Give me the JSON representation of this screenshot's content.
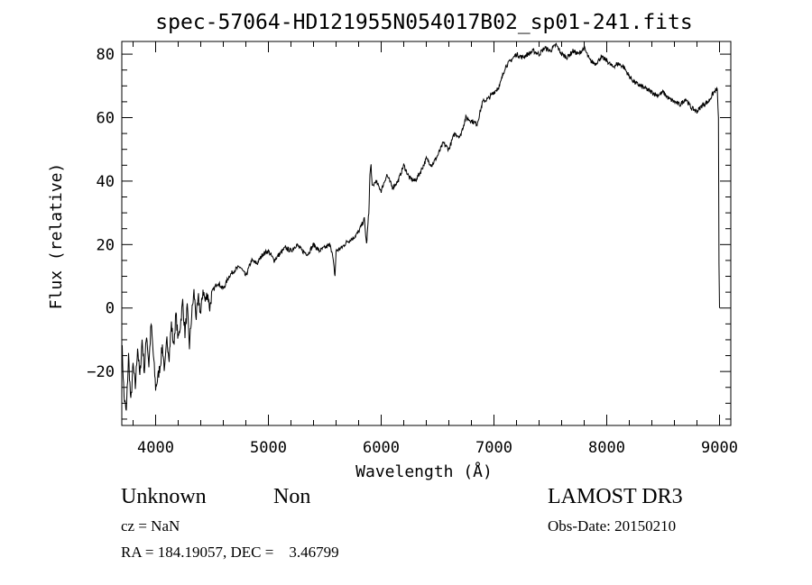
{
  "chart_data": {
    "type": "line",
    "title": "spec-57064-HD121955N054017B02_sp01-241.fits",
    "xlabel": "Wavelength (Å)",
    "ylabel": "Flux (relative)",
    "xlim": [
      3700,
      9100
    ],
    "ylim": [
      -37,
      84
    ],
    "x_ticks": [
      4000,
      5000,
      6000,
      7000,
      8000,
      9000
    ],
    "y_ticks": [
      -20,
      0,
      20,
      40,
      60,
      80
    ],
    "grid": false,
    "series": [
      {
        "x": [
          3700,
          3720,
          3740,
          3760,
          3780,
          3800,
          3820,
          3840,
          3860,
          3880,
          3900,
          3920,
          3940,
          3960,
          3980,
          4000,
          4020,
          4040,
          4060,
          4080,
          4100,
          4120,
          4140,
          4160,
          4180,
          4200,
          4220,
          4240,
          4260,
          4280,
          4300,
          4320,
          4340,
          4360,
          4380,
          4400,
          4420,
          4440,
          4460,
          4480,
          4500,
          4550,
          4600,
          4650,
          4700,
          4750,
          4800,
          4850,
          4900,
          4950,
          5000,
          5050,
          5100,
          5150,
          5200,
          5250,
          5300,
          5350,
          5400,
          5450,
          5500,
          5550,
          5570,
          5590,
          5600,
          5650,
          5700,
          5750,
          5800,
          5850,
          5870,
          5880,
          5890,
          5900,
          5910,
          5920,
          5950,
          6000,
          6050,
          6100,
          6150,
          6200,
          6250,
          6300,
          6350,
          6400,
          6450,
          6500,
          6550,
          6600,
          6650,
          6700,
          6750,
          6800,
          6850,
          6900,
          6950,
          7000,
          7050,
          7100,
          7150,
          7200,
          7250,
          7300,
          7350,
          7400,
          7450,
          7500,
          7550,
          7600,
          7650,
          7700,
          7750,
          7800,
          7850,
          7900,
          7950,
          8000,
          8050,
          8100,
          8150,
          8200,
          8250,
          8300,
          8350,
          8400,
          8450,
          8500,
          8550,
          8600,
          8650,
          8700,
          8750,
          8800,
          8850,
          8900,
          8950,
          8980,
          8990,
          8995,
          9000
        ],
        "y": [
          -10,
          -28,
          -33,
          -15,
          -30,
          -18,
          -25,
          -12,
          -22,
          -10,
          -20,
          -8,
          -18,
          -5,
          -15,
          -25,
          -22,
          -18,
          -12,
          -20,
          -10,
          -15,
          -5,
          -12,
          -2,
          -10,
          -5,
          2,
          -8,
          0,
          -12,
          -2,
          5,
          -3,
          3,
          -2,
          6,
          2,
          5,
          0,
          5,
          8,
          6,
          10,
          12,
          13,
          10,
          15,
          14,
          17,
          18,
          15,
          17,
          19,
          18,
          20,
          18,
          17,
          20,
          18,
          19,
          20,
          16,
          10,
          18,
          19,
          21,
          22,
          24,
          28,
          20,
          25,
          30,
          42,
          45,
          38,
          40,
          37,
          42,
          38,
          40,
          45,
          41,
          40,
          43,
          47,
          45,
          48,
          52,
          50,
          55,
          54,
          60,
          59,
          58,
          65,
          66,
          68,
          70,
          76,
          78,
          80,
          79,
          80,
          81,
          80,
          82,
          81,
          83,
          80,
          79,
          81,
          80,
          82,
          78,
          77,
          79,
          78,
          76,
          77,
          76,
          73,
          71,
          70,
          69,
          68,
          67,
          68,
          66,
          65,
          64,
          66,
          63,
          62,
          64,
          65,
          68,
          69,
          60,
          14,
          0
        ]
      }
    ]
  },
  "info": {
    "class_label": "Unknown",
    "subclass_label": "Non",
    "survey": "LAMOST DR3",
    "cz_line": "cz = NaN",
    "obs_date": "Obs-Date: 20150210",
    "coords_line": "RA = 184.19057, DEC =    3.46799"
  }
}
